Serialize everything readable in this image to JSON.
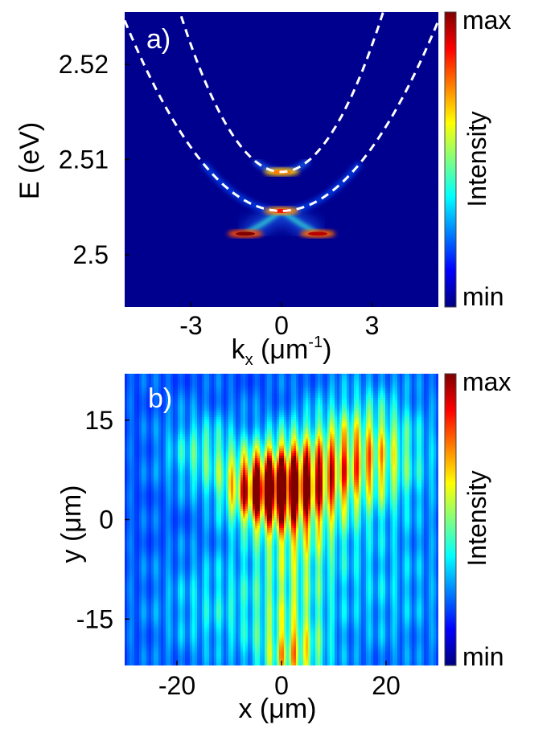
{
  "colors": {
    "background_low": "#00008f",
    "branch": "#ffffff",
    "jet": [
      "#00007f",
      "#0000ff",
      "#007fff",
      "#00ffff",
      "#7fff7f",
      "#ffff00",
      "#ff7f00",
      "#ff0000",
      "#7f0000"
    ]
  },
  "chart_data": [
    {
      "type": "heatmap",
      "panel_label": "a)",
      "xlabel_main": "k",
      "xlabel_sub": "x",
      "xlabel_unit_open": " (μm",
      "xlabel_sup": "-1",
      "xlabel_unit_close": ")",
      "ylabel": "E (eV)",
      "xlim": [
        -5.2,
        5.2
      ],
      "ylim": [
        2.4945,
        2.5255
      ],
      "x_ticks": [
        -3,
        0,
        3
      ],
      "x_tick_labels": [
        "-3",
        "0",
        "3"
      ],
      "y_ticks": [
        2.5,
        2.51,
        2.52
      ],
      "y_tick_labels": [
        "2.5",
        "2.51",
        "2.52"
      ],
      "colorbar": {
        "label": "Intensity",
        "max_label": "max",
        "min_label": "min"
      },
      "dashed_curves": [
        {
          "k0": 0,
          "E0": 2.5087,
          "curvature": 0.00148
        },
        {
          "k0": 0,
          "E0": 2.5046,
          "curvature": 0.00074
        }
      ],
      "bright_branch": {
        "description_points_k": [
          -1.2,
          -0.6,
          0,
          0.6,
          1.2
        ],
        "description_points_E": [
          2.5022,
          2.5033,
          2.5046,
          2.5033,
          2.5022
        ]
      },
      "peak_spots": [
        {
          "k": -1.2,
          "E": 2.5022,
          "intensity": 1.0
        },
        {
          "k": 1.2,
          "E": 2.5022,
          "intensity": 0.9
        },
        {
          "k": 0,
          "E": 2.5046,
          "intensity": 0.75
        },
        {
          "k": 0,
          "E": 2.5087,
          "intensity": 0.55
        }
      ]
    },
    {
      "type": "heatmap",
      "panel_label": "b)",
      "xlabel": "x (μm)",
      "ylabel": "y (μm)",
      "xlim": [
        -30,
        30
      ],
      "ylim": [
        -22,
        22
      ],
      "x_ticks": [
        -20,
        0,
        20
      ],
      "x_tick_labels": [
        "-20",
        "0",
        "20"
      ],
      "y_ticks": [
        -15,
        0,
        15
      ],
      "y_tick_labels": [
        "-15",
        "0",
        "15"
      ],
      "colorbar": {
        "label": "Intensity",
        "max_label": "max",
        "min_label": "min"
      },
      "fringe_period_um": 2.4,
      "blobs": [
        {
          "x": 0,
          "y": 5,
          "sx": 6,
          "sy": 4,
          "amp": 1.0
        },
        {
          "x": -4,
          "y": 4,
          "sx": 4,
          "sy": 3,
          "amp": 0.5
        },
        {
          "x": 10,
          "y": 8,
          "sx": 9,
          "sy": 5,
          "amp": 0.45
        },
        {
          "x": 17,
          "y": 11,
          "sx": 7,
          "sy": 6,
          "amp": 0.35
        },
        {
          "x": -15,
          "y": 10,
          "sx": 5,
          "sy": 4,
          "amp": 0.3
        },
        {
          "x": 3,
          "y": -3,
          "sx": 6,
          "sy": 5,
          "amp": 0.35
        },
        {
          "x": 2,
          "y": -15,
          "sx": 5,
          "sy": 6,
          "amp": 0.35
        },
        {
          "x": 2,
          "y": -21,
          "sx": 4,
          "sy": 3,
          "amp": 0.4
        },
        {
          "x": -12,
          "y": -13,
          "sx": 8,
          "sy": 6,
          "amp": 0.2
        },
        {
          "x": 20,
          "y": -10,
          "sx": 8,
          "sy": 8,
          "amp": 0.15
        }
      ],
      "background": 0.18
    }
  ]
}
